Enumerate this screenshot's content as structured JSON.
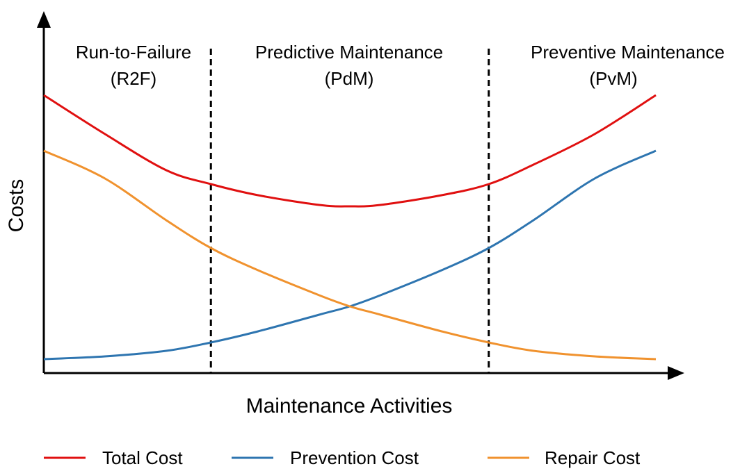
{
  "chart_data": {
    "type": "line",
    "xlabel": "Maintenance Activities",
    "ylabel": "Costs",
    "regions": [
      {
        "line1": "Run-to-Failure",
        "line2": "(R2F)"
      },
      {
        "line1": "Predictive Maintenance",
        "line2": "(PdM)"
      },
      {
        "line1": "Preventive Maintenance",
        "line2": "(PvM)"
      }
    ],
    "region_boundaries": [
      0.273,
      0.727
    ],
    "xlim": [
      0,
      1
    ],
    "ylim": [
      0,
      1
    ],
    "x": [
      0,
      0.1,
      0.2,
      0.273,
      0.35,
      0.45,
      0.5,
      0.55,
      0.65,
      0.727,
      0.8,
      0.9,
      1.0
    ],
    "series": [
      {
        "name": "Total Cost",
        "color": "#e01010",
        "values": [
          1.0,
          0.86,
          0.73,
          0.68,
          0.64,
          0.605,
          0.6,
          0.605,
          0.64,
          0.68,
          0.75,
          0.86,
          1.0
        ]
      },
      {
        "name": "Prevention Cost",
        "color": "#2e75b0",
        "values": [
          0.05,
          0.06,
          0.08,
          0.11,
          0.15,
          0.21,
          0.24,
          0.28,
          0.37,
          0.45,
          0.55,
          0.7,
          0.8
        ]
      },
      {
        "name": "Repair Cost",
        "color": "#f0922e",
        "values": [
          0.8,
          0.7,
          0.55,
          0.45,
          0.37,
          0.28,
          0.24,
          0.21,
          0.15,
          0.11,
          0.08,
          0.06,
          0.05
        ]
      }
    ],
    "legend_position": "bottom"
  }
}
